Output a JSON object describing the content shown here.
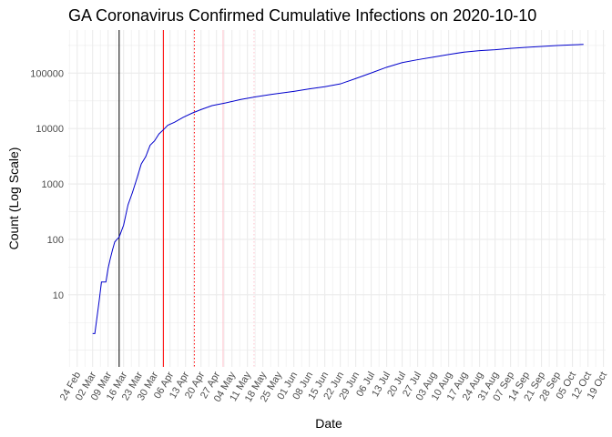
{
  "chart_data": {
    "type": "line",
    "title": "GA Coronavirus Confirmed Cumulative Infections on 2020-10-10",
    "xlabel": "Date",
    "ylabel": "Count (Log Scale)",
    "y_scale": "log",
    "ylim": [
      0.5,
      600000
    ],
    "xlim": [
      "2020-02-20",
      "2020-10-20"
    ],
    "grid": true,
    "colors": {
      "line": "#0000cc",
      "grid": "#ebebeb"
    },
    "x_ticks": [
      "2020-02-24",
      "2020-03-02",
      "2020-03-09",
      "2020-03-16",
      "2020-03-23",
      "2020-03-30",
      "2020-04-06",
      "2020-04-13",
      "2020-04-20",
      "2020-04-27",
      "2020-05-04",
      "2020-05-11",
      "2020-05-18",
      "2020-05-25",
      "2020-06-01",
      "2020-06-08",
      "2020-06-15",
      "2020-06-22",
      "2020-06-29",
      "2020-07-06",
      "2020-07-13",
      "2020-07-20",
      "2020-07-27",
      "2020-08-03",
      "2020-08-10",
      "2020-08-17",
      "2020-08-24",
      "2020-08-31",
      "2020-09-07",
      "2020-09-14",
      "2020-09-21",
      "2020-09-28",
      "2020-10-05",
      "2020-10-12",
      "2020-10-19"
    ],
    "x_tick_labels": [
      "24 Feb",
      "02 Mar",
      "09 Mar",
      "16 Mar",
      "23 Mar",
      "30 Mar",
      "06 Apr",
      "13 Apr",
      "20 Apr",
      "27 Apr",
      "04 May",
      "11 May",
      "18 May",
      "25 May",
      "01 Jun",
      "08 Jun",
      "15 Jun",
      "22 Jun",
      "29 Jun",
      "06 Jul",
      "13 Jul",
      "20 Jul",
      "27 Jul",
      "03 Aug",
      "10 Aug",
      "17 Aug",
      "24 Aug",
      "31 Aug",
      "07 Sep",
      "14 Sep",
      "21 Sep",
      "28 Sep",
      "05 Oct",
      "12 Oct",
      "19 Oct"
    ],
    "y_ticks": [
      10,
      100,
      1000,
      10000,
      100000
    ],
    "y_tick_labels": [
      "10",
      "100",
      "1000",
      "10000",
      "100000"
    ],
    "vlines": [
      {
        "x": "2020-03-14",
        "color": "#000000",
        "style": "solid"
      },
      {
        "x": "2020-04-03",
        "color": "#ff0000",
        "style": "solid"
      },
      {
        "x": "2020-04-17",
        "color": "#ff0000",
        "style": "dotted"
      },
      {
        "x": "2020-04-30",
        "color": "#ffc0cb",
        "style": "solid"
      },
      {
        "x": "2020-05-14",
        "color": "#ffc0cb",
        "style": "dotted"
      }
    ],
    "series": [
      {
        "x": [
          "2020-03-02",
          "2020-03-03",
          "2020-03-05",
          "2020-03-06",
          "2020-03-08",
          "2020-03-09",
          "2020-03-10",
          "2020-03-11",
          "2020-03-12",
          "2020-03-13",
          "2020-03-14",
          "2020-03-16",
          "2020-03-18",
          "2020-03-20",
          "2020-03-22",
          "2020-03-24",
          "2020-03-26",
          "2020-03-28",
          "2020-03-30",
          "2020-04-01",
          "2020-04-03",
          "2020-04-05",
          "2020-04-08",
          "2020-04-12",
          "2020-04-16",
          "2020-04-20",
          "2020-04-25",
          "2020-05-01",
          "2020-05-08",
          "2020-05-15",
          "2020-05-22",
          "2020-06-01",
          "2020-06-08",
          "2020-06-15",
          "2020-06-22",
          "2020-06-29",
          "2020-07-06",
          "2020-07-13",
          "2020-07-20",
          "2020-07-27",
          "2020-08-03",
          "2020-08-10",
          "2020-08-17",
          "2020-08-24",
          "2020-08-31",
          "2020-09-07",
          "2020-09-14",
          "2020-09-21",
          "2020-09-28",
          "2020-10-05",
          "2020-10-10"
        ],
        "y": [
          2,
          2,
          8,
          17,
          17,
          30,
          45,
          65,
          90,
          100,
          110,
          180,
          420,
          700,
          1250,
          2300,
          3100,
          5000,
          6000,
          8000,
          9500,
          11500,
          13000,
          16000,
          19000,
          22000,
          26000,
          29000,
          33500,
          37500,
          41500,
          47000,
          52000,
          57000,
          64000,
          80000,
          101000,
          128000,
          155000,
          175000,
          195000,
          217000,
          240000,
          255000,
          265000,
          280000,
          292000,
          303000,
          315000,
          325000,
          330000
        ]
      }
    ]
  }
}
